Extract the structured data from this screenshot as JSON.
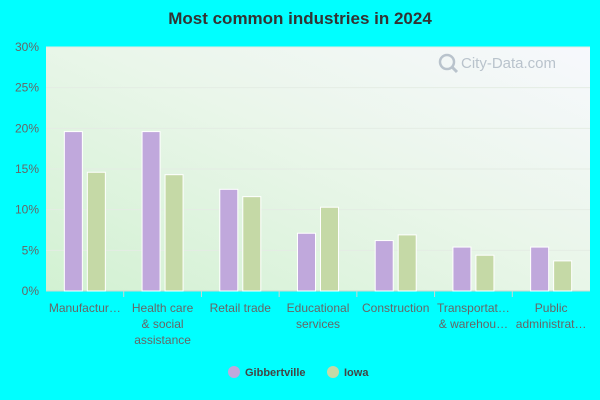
{
  "watermark": {
    "text": "City-Data.com",
    "icon": "magnifier-icon"
  },
  "chart_data": {
    "type": "bar",
    "title": "Most common industries in 2024",
    "xlabel": "",
    "ylabel": "",
    "ylim": [
      0,
      30
    ],
    "yticks": [
      0,
      5,
      10,
      15,
      20,
      25,
      30
    ],
    "ytick_labels": [
      "0%",
      "5%",
      "10%",
      "15%",
      "20%",
      "25%",
      "30%"
    ],
    "categories": [
      "Manufacturing",
      "Health care & social assistance",
      "Retail trade",
      "Educational services",
      "Construction",
      "Transportation & warehousing",
      "Public administration"
    ],
    "category_labels": [
      [
        "Manufactur…"
      ],
      [
        "Health care",
        "& social",
        "assistance"
      ],
      [
        "Retail trade"
      ],
      [
        "Educational",
        "services"
      ],
      [
        "Construction"
      ],
      [
        "Transportat…",
        "& warehou…"
      ],
      [
        "Public",
        "administrat…"
      ]
    ],
    "series": [
      {
        "name": "Gibbertville",
        "color": "#c0a8dc",
        "values": [
          19.6,
          19.6,
          12.5,
          7.1,
          6.2,
          5.4,
          5.4
        ]
      },
      {
        "name": "Iowa",
        "color": "#c5d9a6",
        "values": [
          14.6,
          14.3,
          11.6,
          10.3,
          6.9,
          4.4,
          3.7
        ]
      }
    ],
    "legend": "bottom-center",
    "grid": true
  }
}
